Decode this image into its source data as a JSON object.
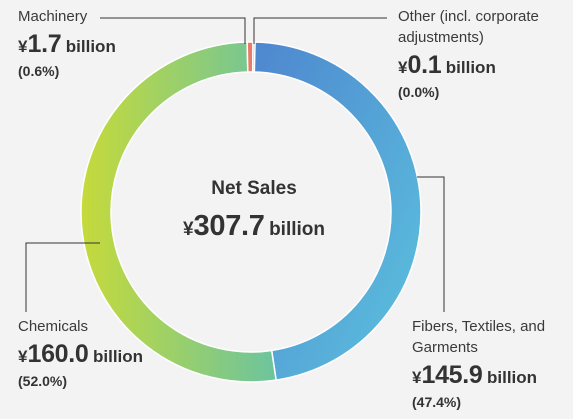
{
  "chart_data": {
    "type": "pie",
    "donut": true,
    "title": "Net Sales",
    "total": {
      "currency": "¥",
      "value": "307.7",
      "unit": "billion"
    },
    "slices": [
      {
        "name": "Fibers, Textiles, and Garments",
        "name_lines": [
          "Fibers, Textiles, and",
          "Garments"
        ],
        "value": 145.9,
        "value_text": "145.9",
        "percent": 47.4,
        "percent_text": "(47.4%)",
        "color_start": "#4e86cf",
        "color_end": "#5cc3de"
      },
      {
        "name": "Chemicals",
        "name_lines": [
          "Chemicals"
        ],
        "value": 160.0,
        "value_text": "160.0",
        "percent": 52.0,
        "percent_text": "(52.0%)",
        "color_start": "#c6da3a",
        "color_end": "#6cc49e"
      },
      {
        "name": "Machinery",
        "name_lines": [
          "Machinery"
        ],
        "value": 1.7,
        "value_text": "1.7",
        "percent": 0.6,
        "percent_text": "(0.6%)",
        "color_start": "#e87a6a",
        "color_end": "#e87a6a"
      },
      {
        "name": "Other (incl. corporate adjustments)",
        "name_lines": [
          "Other (incl. corporate",
          "adjustments)"
        ],
        "value": 0.1,
        "value_text": "0.1",
        "percent": 0.0,
        "percent_text": "(0.0%)",
        "color_start": "#8fb8d8",
        "color_end": "#8fb8d8"
      }
    ],
    "currency_symbol": "¥",
    "unit_label": "billion",
    "leader_line_color": "#333333"
  }
}
